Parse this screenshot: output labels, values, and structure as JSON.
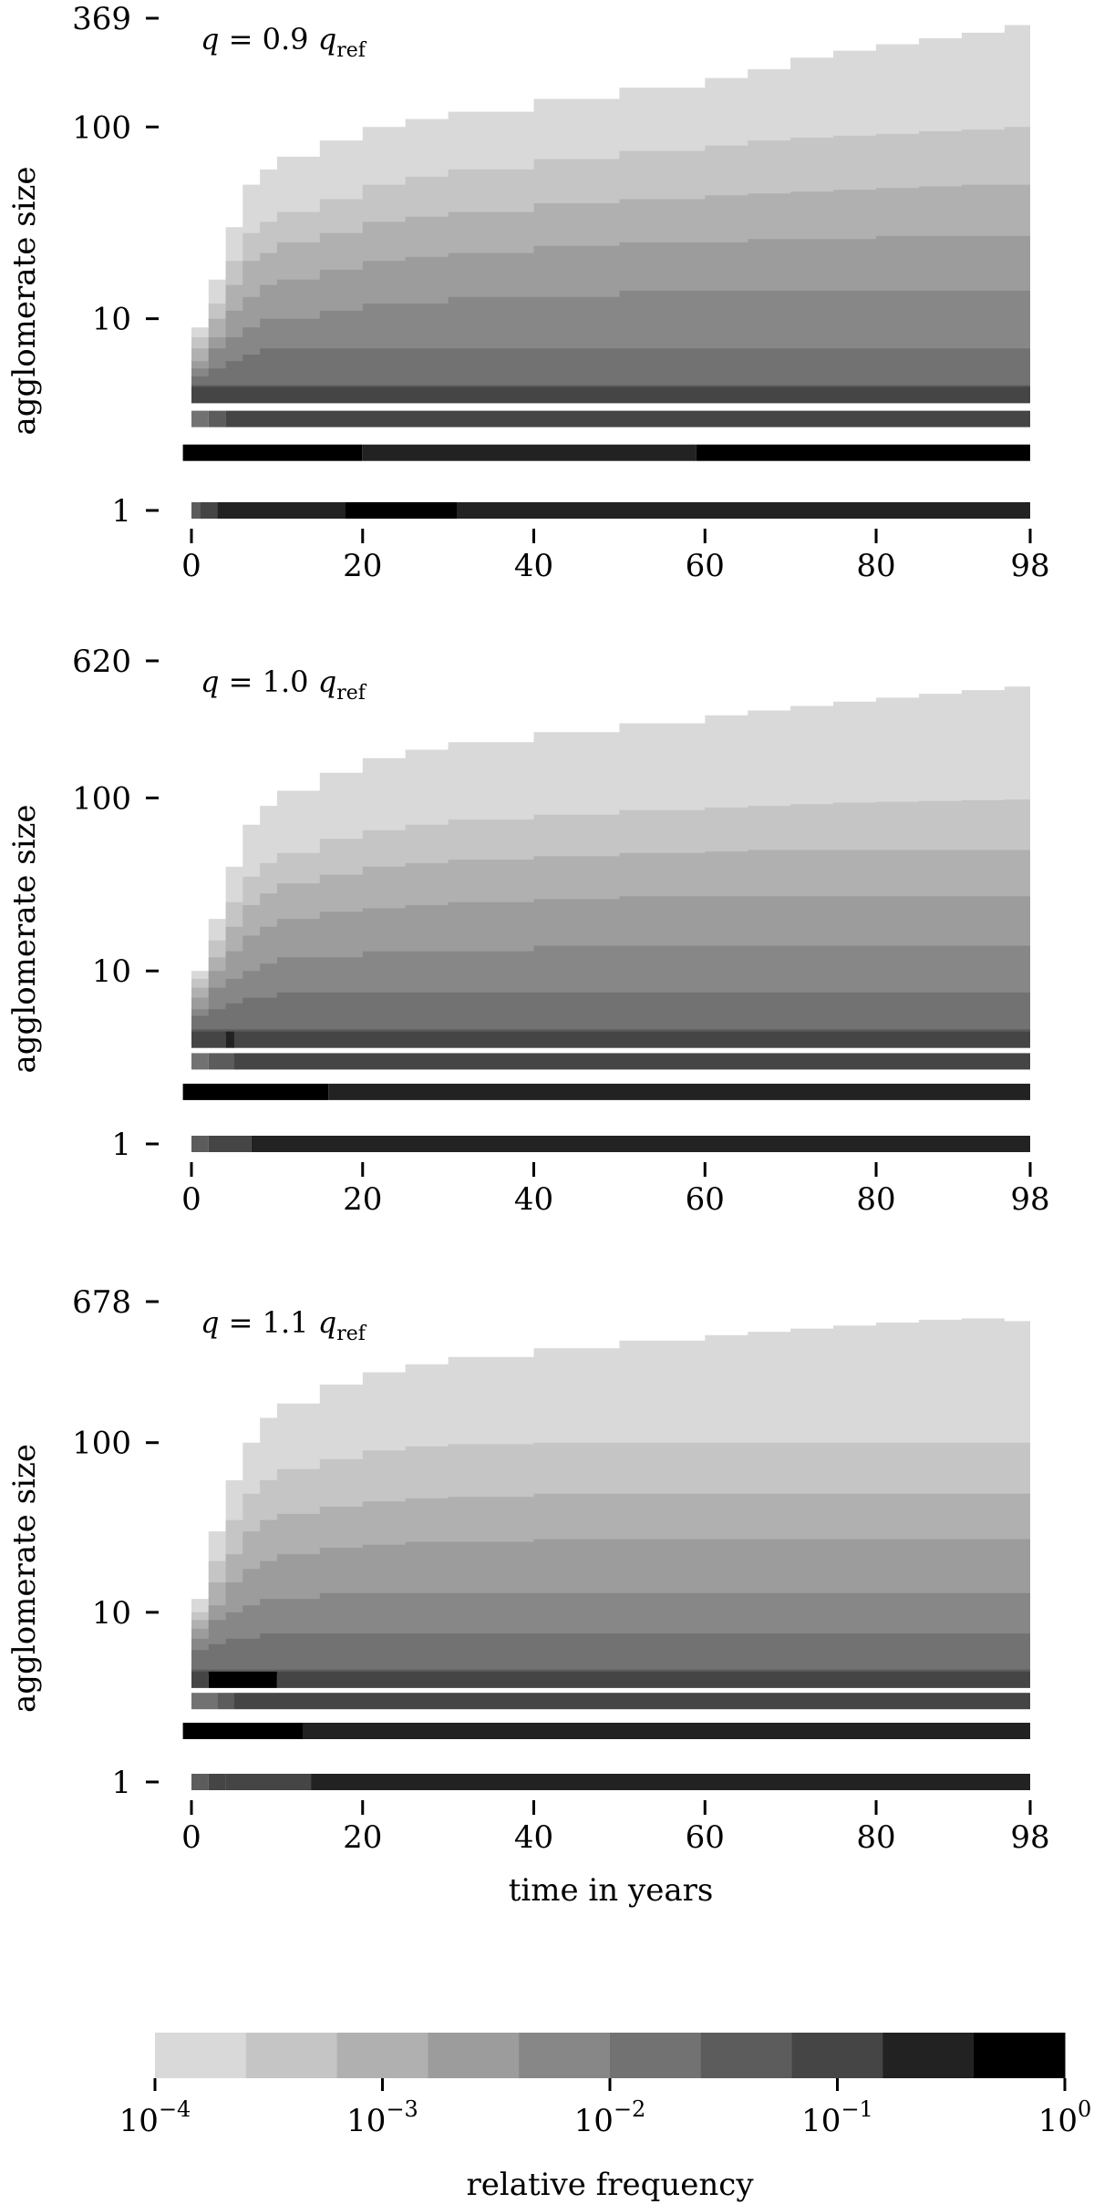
{
  "chart_data": [
    {
      "type": "heatmap",
      "panel_label": {
        "italic_var": "q",
        "middle": " = 0.9 ",
        "sub_base": "q",
        "subscript": "ref"
      },
      "ylabel": "agglomerate size",
      "xlabel": "",
      "yscale": "log",
      "ylim": [
        1,
        369
      ],
      "y_ticks": [
        1,
        10,
        100,
        369
      ],
      "y_tick_labels": [
        "1",
        "10",
        "100",
        "369"
      ],
      "xlim": [
        0,
        98
      ],
      "x_ticks": [
        0,
        20,
        40,
        60,
        80,
        98
      ],
      "x_tick_labels": [
        "0",
        "20",
        "40",
        "60",
        "80",
        "98"
      ],
      "size_bins": {
        "band_sizes": [
          1,
          2,
          3,
          4
        ],
        "band_rows": [
          {
            "size": 1,
            "segments": [
              {
                "x": [
                  0,
                  1
                ],
                "level": 6
              },
              {
                "x": [
                  1,
                  3
                ],
                "level": 7
              },
              {
                "x": [
                  3,
                  18
                ],
                "level": 8
              },
              {
                "x": [
                  18,
                  31
                ],
                "level": 9
              },
              {
                "x": [
                  31,
                  98
                ],
                "level": 8
              }
            ]
          },
          {
            "size": 2,
            "segments": [
              {
                "x": [
                  -1,
                  20
                ],
                "level": 9
              },
              {
                "x": [
                  20,
                  59
                ],
                "level": 8
              },
              {
                "x": [
                  59,
                  98
                ],
                "level": 9
              }
            ]
          },
          {
            "size": 3,
            "segments": [
              {
                "x": [
                  0,
                  2
                ],
                "level": 5
              },
              {
                "x": [
                  2,
                  4
                ],
                "level": 6
              },
              {
                "x": [
                  4,
                  98
                ],
                "level": 7
              }
            ]
          },
          {
            "size": 4,
            "segments": [
              {
                "x": [
                  0,
                  98
                ],
                "level": 7
              }
            ]
          }
        ],
        "envelope": {
          "x": [
            0,
            2,
            4,
            6,
            8,
            10,
            15,
            20,
            25,
            30,
            40,
            50,
            60,
            65,
            70,
            75,
            80,
            85,
            90,
            95,
            98
          ],
          "level_upper_sizes": [
            [
              9,
              16,
              30,
              50,
              60,
              70,
              85,
              100,
              110,
              120,
              140,
              160,
              180,
              200,
              230,
              250,
              270,
              290,
              310,
              340,
              360
            ],
            [
              8,
              12,
              20,
              28,
              32,
              36,
              42,
              50,
              55,
              60,
              68,
              75,
              80,
              85,
              88,
              90,
              92,
              95,
              97,
              100,
              100
            ],
            [
              7,
              10,
              15,
              20,
              22,
              25,
              28,
              32,
              34,
              36,
              40,
              42,
              44,
              45,
              46,
              47,
              48,
              49,
              50,
              50,
              50
            ],
            [
              6,
              8,
              11,
              13,
              15,
              16,
              18,
              20,
              21,
              22,
              24,
              25,
              25,
              26,
              26,
              26,
              27,
              27,
              27,
              27,
              27
            ],
            [
              5.5,
              7,
              8,
              9,
              10,
              10,
              11,
              12,
              12,
              13,
              13,
              14,
              14,
              14,
              14,
              14,
              14,
              14,
              14,
              14,
              14
            ],
            [
              5,
              5.5,
              6,
              6.5,
              7,
              7,
              7,
              7,
              7,
              7,
              7,
              7,
              7,
              7,
              7,
              7,
              7,
              7,
              7,
              7,
              7
            ],
            [
              4.5,
              4.5,
              4.5,
              4.5,
              4.5,
              4.5,
              4.5,
              4.5,
              4.5,
              4.5,
              4.5,
              4.5,
              4.5,
              4.5,
              4.5,
              4.5,
              4.5,
              4.5,
              4.5,
              4.5,
              4.5
            ]
          ]
        }
      }
    },
    {
      "type": "heatmap",
      "panel_label": {
        "italic_var": "q",
        "middle": " = 1.0 ",
        "sub_base": "q",
        "subscript": "ref"
      },
      "ylabel": "agglomerate size",
      "xlabel": "",
      "yscale": "log",
      "ylim": [
        1,
        620
      ],
      "y_ticks": [
        1,
        10,
        100,
        620
      ],
      "y_tick_labels": [
        "1",
        "10",
        "100",
        "620"
      ],
      "xlim": [
        0,
        98
      ],
      "x_ticks": [
        0,
        20,
        40,
        60,
        80,
        98
      ],
      "x_tick_labels": [
        "0",
        "20",
        "40",
        "60",
        "80",
        "98"
      ],
      "size_bins": {
        "band_sizes": [
          1,
          2,
          3,
          4
        ],
        "band_rows": [
          {
            "size": 1,
            "segments": [
              {
                "x": [
                  0,
                  2
                ],
                "level": 6
              },
              {
                "x": [
                  2,
                  7
                ],
                "level": 7
              },
              {
                "x": [
                  7,
                  98
                ],
                "level": 8
              }
            ]
          },
          {
            "size": 2,
            "segments": [
              {
                "x": [
                  -1,
                  16
                ],
                "level": 9
              },
              {
                "x": [
                  16,
                  98
                ],
                "level": 8
              }
            ]
          },
          {
            "size": 3,
            "segments": [
              {
                "x": [
                  0,
                  2
                ],
                "level": 5
              },
              {
                "x": [
                  2,
                  5
                ],
                "level": 6
              },
              {
                "x": [
                  5,
                  98
                ],
                "level": 7
              }
            ]
          },
          {
            "size": 4,
            "segments": [
              {
                "x": [
                  0,
                  4
                ],
                "level": 7
              },
              {
                "x": [
                  4,
                  5
                ],
                "level": 8
              },
              {
                "x": [
                  5,
                  98
                ],
                "level": 7
              }
            ]
          }
        ],
        "envelope": {
          "x": [
            0,
            2,
            4,
            6,
            8,
            10,
            15,
            20,
            25,
            30,
            40,
            50,
            60,
            65,
            70,
            75,
            80,
            85,
            90,
            95,
            98
          ],
          "level_upper_sizes": [
            [
              10,
              20,
              40,
              70,
              90,
              110,
              140,
              170,
              190,
              210,
              240,
              270,
              300,
              320,
              340,
              360,
              380,
              400,
              420,
              440,
              460
            ],
            [
              9,
              15,
              25,
              35,
              42,
              48,
              58,
              65,
              70,
              75,
              80,
              85,
              88,
              90,
              92,
              94,
              95,
              96,
              97,
              98,
              100
            ],
            [
              8,
              12,
              18,
              24,
              28,
              32,
              36,
              40,
              42,
              44,
              46,
              48,
              49,
              50,
              50,
              50,
              50,
              50,
              50,
              50,
              50
            ],
            [
              7,
              10,
              13,
              16,
              18,
              20,
              22,
              23,
              24,
              25,
              26,
              27,
              27,
              27,
              27,
              27,
              27,
              27,
              27,
              27,
              27
            ],
            [
              6,
              8,
              9,
              10,
              11,
              12,
              12,
              13,
              13,
              13,
              14,
              14,
              14,
              14,
              14,
              14,
              14,
              14,
              14,
              14,
              14
            ],
            [
              5.5,
              6,
              6.5,
              7,
              7,
              7.5,
              7.5,
              7.5,
              7.5,
              7.5,
              7.5,
              7.5,
              7.5,
              7.5,
              7.5,
              7.5,
              7.5,
              7.5,
              7.5,
              7.5,
              7.5
            ],
            [
              4.6,
              4.6,
              4.6,
              4.6,
              4.6,
              4.6,
              4.6,
              4.6,
              4.6,
              4.6,
              4.6,
              4.6,
              4.6,
              4.6,
              4.6,
              4.6,
              4.6,
              4.6,
              4.6,
              4.6,
              4.6
            ]
          ]
        }
      }
    },
    {
      "type": "heatmap",
      "panel_label": {
        "italic_var": "q",
        "middle": " = 1.1 ",
        "sub_base": "q",
        "subscript": "ref"
      },
      "ylabel": "agglomerate size",
      "xlabel": "time in years",
      "yscale": "log",
      "ylim": [
        1,
        678
      ],
      "y_ticks": [
        1,
        10,
        100,
        678
      ],
      "y_tick_labels": [
        "1",
        "10",
        "100",
        "678"
      ],
      "xlim": [
        0,
        98
      ],
      "x_ticks": [
        0,
        20,
        40,
        60,
        80,
        98
      ],
      "x_tick_labels": [
        "0",
        "20",
        "40",
        "60",
        "80",
        "98"
      ],
      "size_bins": {
        "band_sizes": [
          1,
          2,
          3,
          4
        ],
        "band_rows": [
          {
            "size": 1,
            "segments": [
              {
                "x": [
                  0,
                  2
                ],
                "level": 6
              },
              {
                "x": [
                  2,
                  4
                ],
                "level": 7
              },
              {
                "x": [
                  4,
                  14
                ],
                "level": 7
              },
              {
                "x": [
                  14,
                  98
                ],
                "level": 8
              }
            ]
          },
          {
            "size": 2,
            "segments": [
              {
                "x": [
                  -1,
                  13
                ],
                "level": 9
              },
              {
                "x": [
                  13,
                  98
                ],
                "level": 8
              }
            ]
          },
          {
            "size": 3,
            "segments": [
              {
                "x": [
                  0,
                  3
                ],
                "level": 5
              },
              {
                "x": [
                  3,
                  5
                ],
                "level": 6
              },
              {
                "x": [
                  5,
                  98
                ],
                "level": 7
              }
            ]
          },
          {
            "size": 4,
            "segments": [
              {
                "x": [
                  0,
                  2
                ],
                "level": 7
              },
              {
                "x": [
                  2,
                  10
                ],
                "level": 9
              },
              {
                "x": [
                  10,
                  98
                ],
                "level": 7
              }
            ]
          }
        ],
        "envelope": {
          "x": [
            0,
            2,
            4,
            6,
            8,
            10,
            15,
            20,
            25,
            30,
            40,
            50,
            60,
            65,
            70,
            75,
            80,
            85,
            90,
            95,
            98
          ],
          "level_upper_sizes": [
            [
              12,
              30,
              60,
              100,
              140,
              170,
              220,
              260,
              290,
              320,
              360,
              400,
              430,
              450,
              470,
              490,
              510,
              530,
              540,
              520,
              500
            ],
            [
              10,
              20,
              35,
              50,
              60,
              70,
              80,
              90,
              95,
              98,
              100,
              100,
              100,
              100,
              100,
              100,
              100,
              100,
              100,
              100,
              100
            ],
            [
              9,
              15,
              22,
              30,
              35,
              38,
              42,
              45,
              47,
              48,
              50,
              50,
              50,
              50,
              50,
              50,
              50,
              50,
              50,
              50,
              50
            ],
            [
              8,
              11,
              15,
              18,
              20,
              22,
              24,
              25,
              26,
              26,
              27,
              27,
              27,
              27,
              27,
              27,
              27,
              27,
              27,
              27,
              27
            ],
            [
              7,
              9,
              10,
              11,
              12,
              12,
              13,
              13,
              13,
              13,
              13,
              13,
              13,
              13,
              13,
              13,
              13,
              13,
              13,
              13,
              13
            ],
            [
              6,
              6.5,
              7,
              7,
              7.5,
              7.5,
              7.5,
              7.5,
              7.5,
              7.5,
              7.5,
              7.5,
              7.5,
              7.5,
              7.5,
              7.5,
              7.5,
              7.5,
              7.5,
              7.5,
              7.5
            ],
            [
              4.6,
              4.6,
              4.6,
              4.6,
              4.6,
              4.6,
              4.6,
              4.6,
              4.6,
              4.6,
              4.6,
              4.6,
              4.6,
              4.6,
              4.6,
              4.6,
              4.6,
              4.6,
              4.6,
              4.6,
              4.6
            ]
          ]
        }
      }
    }
  ],
  "colorbar": {
    "label": "relative frequency",
    "scale": "log",
    "range": [
      0.0001,
      1
    ],
    "tick_values": [
      0.0001,
      0.001,
      0.01,
      0.1,
      1
    ],
    "tick_labels": [
      {
        "base": "10",
        "exponent": "−4"
      },
      {
        "base": "10",
        "exponent": "−3"
      },
      {
        "base": "10",
        "exponent": "−2"
      },
      {
        "base": "10",
        "exponent": "−1"
      },
      {
        "base": "10",
        "exponent": "0"
      }
    ],
    "level_colors": [
      "#d9d9d9",
      "#c5c5c5",
      "#b0b0b0",
      "#9c9c9c",
      "#878787",
      "#727272",
      "#5c5c5c",
      "#454545",
      "#222222",
      "#000000"
    ]
  }
}
